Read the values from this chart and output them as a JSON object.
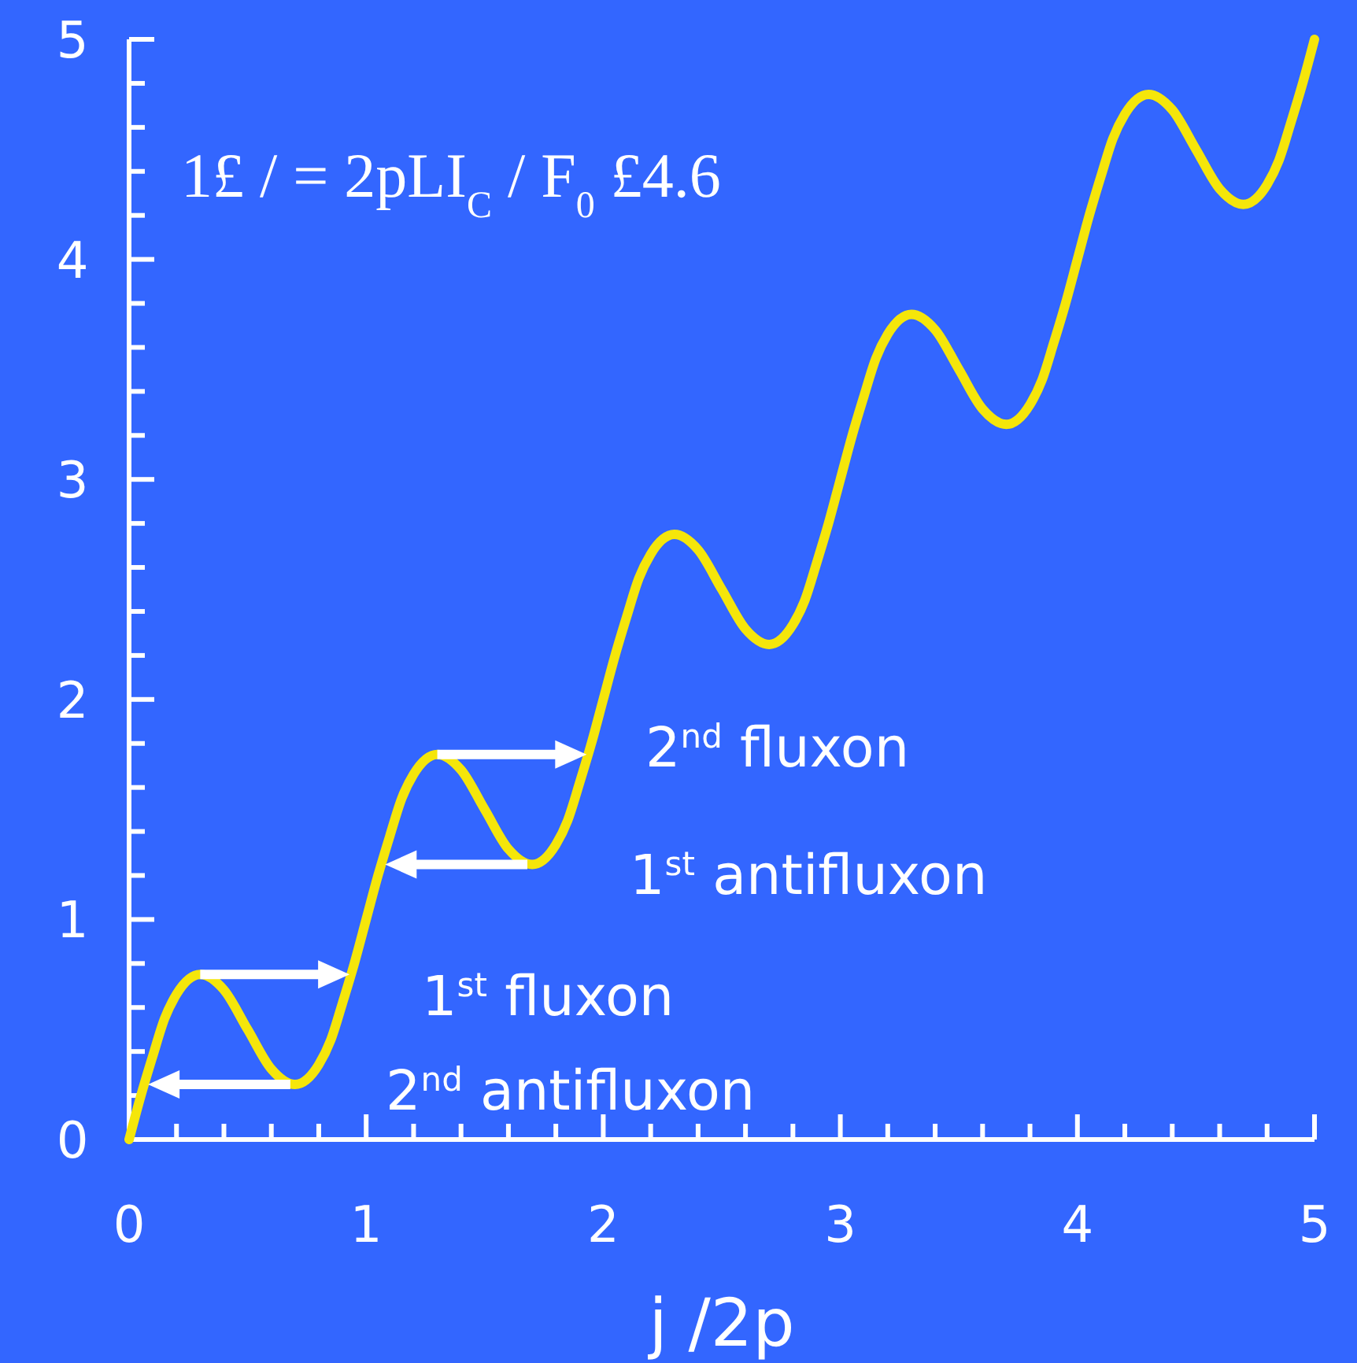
{
  "chart_data": {
    "type": "line",
    "xlabel": "j /2p",
    "annotations": [
      "1£ / = 2pLI$_{C}$ / F$_{0}$ £4.6",
      "2$^{nd}$ fluxon",
      "1$^{st}$ antifluxon",
      "1$^{st}$ fluxon",
      "2$^{nd}$ antifluxon"
    ],
    "x": [
      0,
      0.05,
      0.1,
      0.15,
      0.2,
      0.3,
      0.4,
      0.5,
      0.6,
      0.7,
      0.8,
      0.85,
      0.9,
      0.95,
      1,
      1.05,
      1.1,
      1.15,
      1.2,
      1.3,
      1.4,
      1.5,
      1.6,
      1.7,
      1.8,
      1.85,
      1.9,
      1.95,
      2,
      2.05,
      2.1,
      2.15,
      2.2,
      2.3,
      2.4,
      2.5,
      2.6,
      2.7,
      2.8,
      2.85,
      2.9,
      2.95,
      3,
      3.05,
      3.1,
      3.15,
      3.2,
      3.3,
      3.4,
      3.5,
      3.6,
      3.7,
      3.8,
      3.85,
      3.9,
      3.95,
      4,
      4.05,
      4.1,
      4.15,
      4.2,
      4.3,
      4.4,
      4.5,
      4.6,
      4.7,
      4.8,
      4.85,
      4.9,
      4.95,
      5
    ],
    "series": [
      {
        "color": "#f5e60a",
        "values": [
          0,
          0.2,
          0.38,
          0.55,
          0.66,
          0.75,
          0.68,
          0.5,
          0.32,
          0.25,
          0.34,
          0.45,
          0.62,
          0.8,
          1,
          1.2,
          1.38,
          1.55,
          1.66,
          1.75,
          1.68,
          1.5,
          1.32,
          1.25,
          1.34,
          1.45,
          1.62,
          1.8,
          2,
          2.2,
          2.38,
          2.55,
          2.66,
          2.75,
          2.68,
          2.5,
          2.32,
          2.25,
          2.34,
          2.45,
          2.62,
          2.8,
          3,
          3.2,
          3.38,
          3.55,
          3.66,
          3.75,
          3.68,
          3.5,
          3.32,
          3.25,
          3.34,
          3.45,
          3.62,
          3.8,
          4,
          4.2,
          4.38,
          4.55,
          4.66,
          4.75,
          4.68,
          4.5,
          4.32,
          4.25,
          4.34,
          4.45,
          4.62,
          4.8,
          5
        ]
      }
    ],
    "xlim": [
      0,
      5
    ],
    "ylim": [
      0,
      5
    ],
    "xticks": [
      0,
      {
        "value": 0.2,
        "label": null
      },
      {
        "value": 0.4,
        "label": null
      },
      {
        "value": 0.6,
        "label": null
      },
      {
        "value": 0.8,
        "label": null
      },
      1,
      {
        "value": 1.2,
        "label": null
      },
      {
        "value": 1.4,
        "label": null
      },
      {
        "value": 1.6,
        "label": null
      },
      {
        "value": 1.8,
        "label": null
      },
      2,
      {
        "value": 2.2,
        "label": null
      },
      {
        "value": 2.4,
        "label": null
      },
      {
        "value": 2.6,
        "label": null
      },
      {
        "value": 2.8,
        "label": null
      },
      3,
      {
        "value": 3.2,
        "label": null
      },
      {
        "value": 3.4,
        "label": null
      },
      {
        "value": 3.6,
        "label": null
      },
      {
        "value": 3.8,
        "label": null
      },
      4,
      {
        "value": 4.2,
        "label": null
      },
      {
        "value": 4.4,
        "label": null
      },
      {
        "value": 4.6,
        "label": null
      },
      {
        "value": 4.8,
        "label": null
      },
      5
    ],
    "yticks": [
      0,
      {
        "value": 0.2,
        "label": null
      },
      {
        "value": 0.4,
        "label": null
      },
      {
        "value": 0.6,
        "label": null
      },
      {
        "value": 0.8,
        "label": null
      },
      1,
      {
        "value": 1.2,
        "label": null
      },
      {
        "value": 1.4,
        "label": null
      },
      {
        "value": 1.6,
        "label": null
      },
      {
        "value": 1.8,
        "label": null
      },
      2,
      {
        "value": 2.2,
        "label": null
      },
      {
        "value": 2.4,
        "label": null
      },
      {
        "value": 2.6,
        "label": null
      },
      {
        "value": 2.8,
        "label": null
      },
      3,
      {
        "value": 3.2,
        "label": null
      },
      {
        "value": 3.4,
        "label": null
      },
      {
        "value": 3.6,
        "label": null
      },
      {
        "value": 3.8,
        "label": null
      },
      4,
      {
        "value": 4.2,
        "label": null
      },
      {
        "value": 4.4,
        "label": null
      },
      {
        "value": 4.6,
        "label": null
      },
      {
        "value": 4.8,
        "label": null
      },
      5
    ],
    "grid": false,
    "marker": "none",
    "line_style": "solid"
  }
}
